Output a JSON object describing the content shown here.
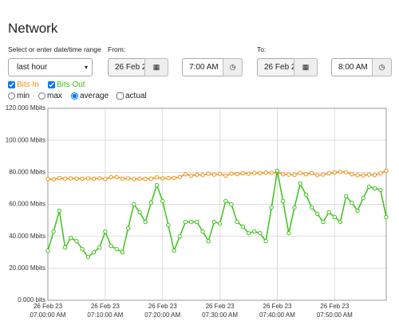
{
  "header": {
    "title": "Network"
  },
  "range": {
    "label": "Select or enter date/time range",
    "selected": "last hour",
    "from_label": "From:",
    "from_date": "26 Feb 2",
    "from_time": "7:00 AM",
    "to_label": "To:",
    "to_date": "26 Feb 2",
    "to_time": "8:00 AM"
  },
  "aggregation": {
    "options": [
      "min",
      "max",
      "average",
      "actual"
    ],
    "selected": "average"
  },
  "chart_data": {
    "type": "line",
    "x": [
      0,
      1,
      2,
      3,
      4,
      5,
      6,
      7,
      8,
      9,
      10,
      11,
      12,
      13,
      14,
      15,
      16,
      17,
      18,
      19,
      20,
      21,
      22,
      23,
      24,
      25,
      26,
      27,
      28,
      29,
      30,
      31,
      32,
      33,
      34,
      35,
      36,
      37,
      38,
      39,
      40,
      41,
      42,
      43,
      44,
      45,
      46,
      47,
      48,
      49,
      50,
      51,
      52,
      53,
      54,
      55,
      56,
      57,
      58,
      59
    ],
    "series": [
      {
        "name": "Bits In",
        "color": "#f0900f",
        "visible": true,
        "values": [
          75.8,
          75.6,
          76.4,
          76.0,
          76.2,
          76.1,
          76.0,
          76.2,
          76.0,
          76.3,
          75.8,
          76.9,
          77.0,
          76.0,
          76.2,
          75.8,
          76.0,
          75.9,
          76.0,
          76.8,
          76.2,
          76.4,
          76.5,
          77.0,
          78.8,
          77.9,
          78.5,
          78.3,
          79.1,
          78.6,
          79.0,
          77.9,
          79.2,
          78.9,
          79.4,
          79.1,
          79.6,
          79.4,
          79.8,
          79.7,
          80.0,
          78.8,
          78.6,
          78.5,
          79.6,
          78.8,
          79.5,
          78.2,
          78.6,
          79.4,
          79.9,
          80.3,
          80.1,
          78.8,
          78.2,
          78.1,
          78.6,
          78.3,
          79.4,
          81.0
        ]
      },
      {
        "name": "Bits Out",
        "color": "#3cc21a",
        "visible": true,
        "values": [
          31,
          43,
          56,
          33,
          39,
          37,
          32,
          27,
          30,
          33,
          43,
          34,
          32,
          30,
          45,
          60,
          55,
          49,
          61,
          72,
          62,
          47,
          31,
          40,
          49,
          49,
          49,
          43,
          37,
          49,
          48,
          62,
          60,
          49,
          46,
          42,
          43,
          42,
          37,
          58,
          81,
          62,
          42,
          58,
          73,
          66,
          58,
          54,
          49,
          55,
          52,
          49,
          65,
          61,
          56,
          64,
          71,
          70,
          69,
          52
        ]
      }
    ],
    "xlim": [
      0,
      59
    ],
    "xticks": [
      {
        "value": 0,
        "label": "26 Feb 23\n07:00:00 AM"
      },
      {
        "value": 10,
        "label": "26 Feb 23\n07:10:00 AM"
      },
      {
        "value": 20,
        "label": "26 Feb 23\n07:20:00 AM"
      },
      {
        "value": 30,
        "label": "26 Feb 23\n07:30:00 AM"
      },
      {
        "value": 40,
        "label": "26 Feb 23\n07:40:00 AM"
      },
      {
        "value": 50,
        "label": "26 Feb 23\n07:50:00 AM"
      }
    ],
    "ylim": [
      0,
      120
    ],
    "yticks": [
      {
        "value": 0,
        "label": "0.000 bits"
      },
      {
        "value": 20,
        "label": "20.000 Mbits"
      },
      {
        "value": 40,
        "label": "40.000 Mbits"
      },
      {
        "value": 60,
        "label": "60.000 Mbits"
      },
      {
        "value": 80,
        "label": "80.000 Mbits"
      },
      {
        "value": 100,
        "label": "100.000 Mbits"
      },
      {
        "value": 120,
        "label": "120.000 Mbits"
      }
    ],
    "grid": true
  }
}
